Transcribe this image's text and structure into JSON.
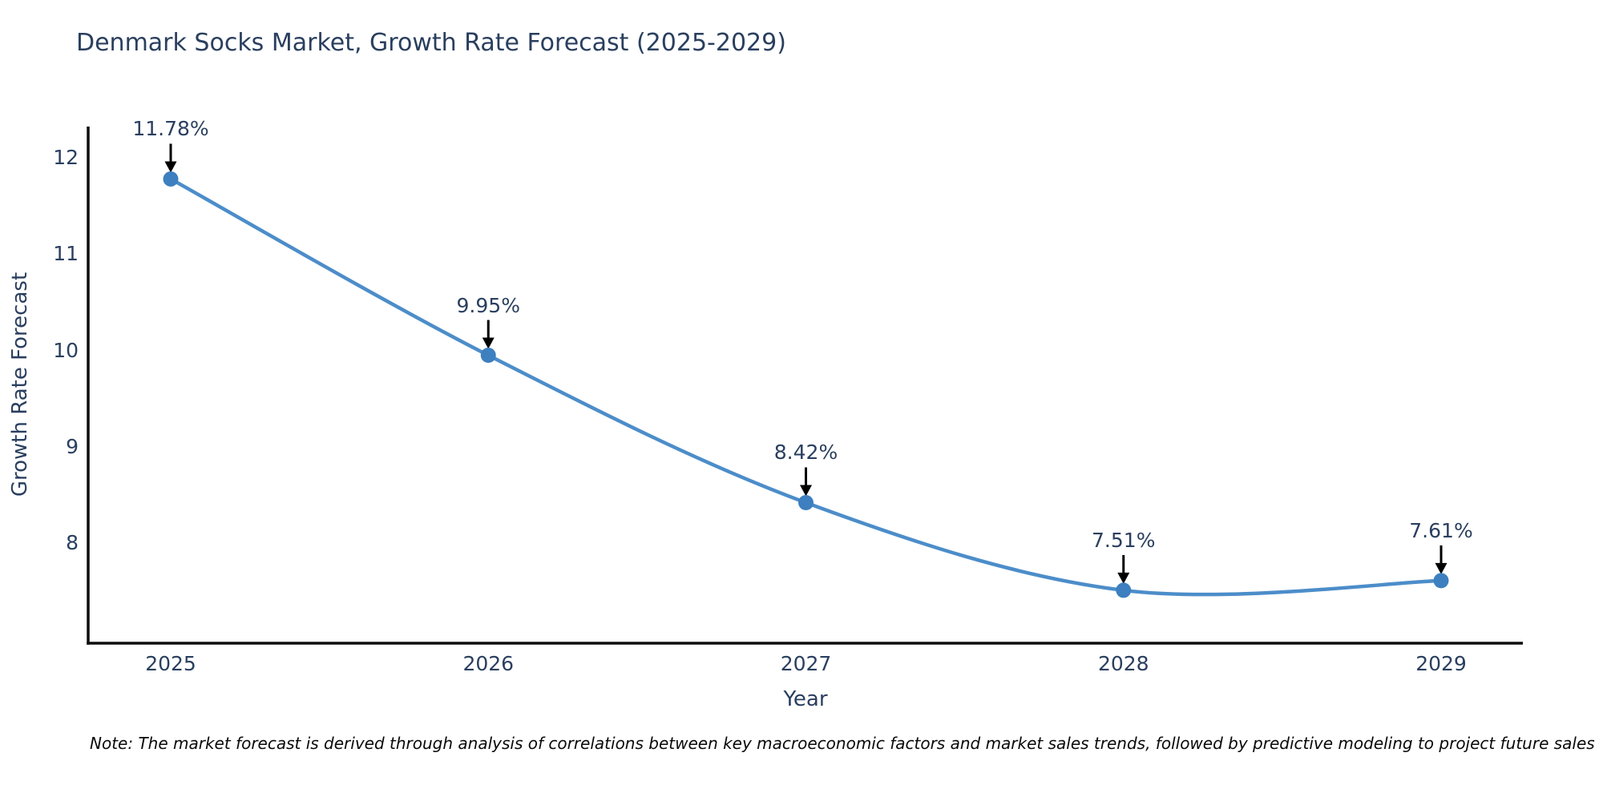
{
  "title": "Denmark Socks Market, Growth Rate Forecast (2025-2029)",
  "note": "Note: The market forecast is derived through analysis of correlations between key macroeconomic factors and market sales trends, followed by predictive modeling to project future sales",
  "colors": {
    "text": "#2a3f5f",
    "axis": "#0d0d0d",
    "line": "#4c8dc9",
    "marker": "#3d7fbf",
    "arrow": "#000000",
    "background": "#ffffff",
    "note_text": "#0a0a0a"
  },
  "chart_data": {
    "type": "line",
    "title": "Denmark Socks Market, Growth Rate Forecast (2025-2029)",
    "xlabel": "Year",
    "ylabel": "Growth Rate Forecast",
    "x": [
      2025,
      2026,
      2027,
      2028,
      2029
    ],
    "y": [
      11.78,
      9.95,
      8.42,
      7.51,
      7.61
    ],
    "point_labels": [
      "11.78%",
      "9.95%",
      "8.42%",
      "7.51%",
      "7.61%"
    ],
    "xticks": [
      "2025",
      "2026",
      "2027",
      "2028",
      "2029"
    ],
    "yticks": [
      8,
      9,
      10,
      11,
      12
    ],
    "ylim": [
      7.0,
      12.3
    ],
    "line_shape": "spline",
    "grid": false,
    "legend_position": "none",
    "annotations_have_arrows": true
  }
}
